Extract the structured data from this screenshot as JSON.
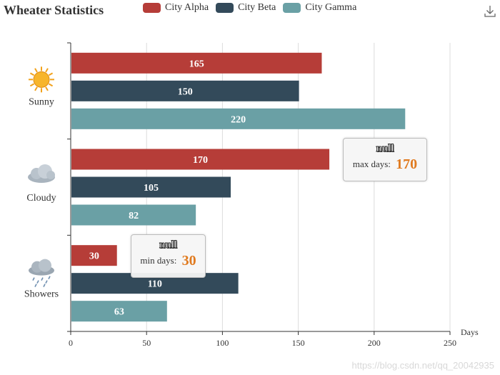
{
  "title": "Wheater Statistics",
  "legend": [
    {
      "name": "City Alpha",
      "color": "#b63d38"
    },
    {
      "name": "City Beta",
      "color": "#334a5a"
    },
    {
      "name": "City Gamma",
      "color": "#6aa0a5"
    }
  ],
  "toolbar": {
    "download_icon": "download-icon"
  },
  "chart_data": {
    "type": "bar",
    "orientation": "horizontal",
    "categories": [
      "Sunny",
      "Cloudy",
      "Showers"
    ],
    "category_icons": [
      "sun-icon",
      "cloud-icon",
      "rain-icon"
    ],
    "series": [
      {
        "name": "City Alpha",
        "color": "#b63d38",
        "values": [
          165,
          170,
          30
        ]
      },
      {
        "name": "City Beta",
        "color": "#334a5a",
        "values": [
          150,
          105,
          110
        ]
      },
      {
        "name": "City Gamma",
        "color": "#6aa0a5",
        "values": [
          220,
          82,
          63
        ]
      }
    ],
    "xlabel": "Days",
    "xlim": [
      0,
      250
    ],
    "xticks": [
      0,
      50,
      100,
      150,
      200,
      250
    ],
    "grid": true,
    "legend_position": "top",
    "annotations": [
      {
        "title": "null",
        "label": "max days:",
        "value": "170"
      },
      {
        "title": "null",
        "label": "min days:",
        "value": "30"
      }
    ]
  },
  "watermark": "https://blog.csdn.net/qq_20042935"
}
